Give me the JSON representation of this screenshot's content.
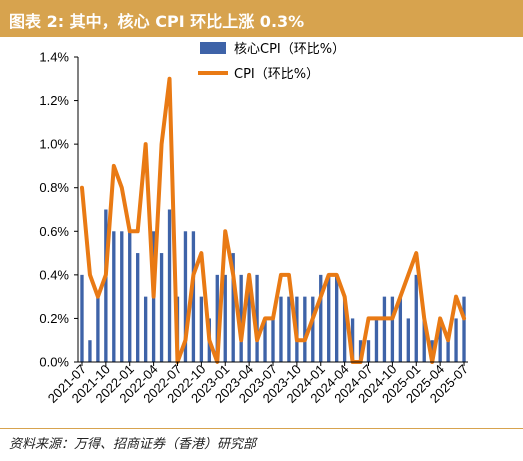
{
  "title": "图表 2:  其中，核心 CPI 环比上涨 0.3%",
  "source": "资料来源：万得、招商证券（香港）研究部",
  "colors": {
    "bar": "#3e63a8",
    "line": "#e97a14",
    "accent": "#d7a34e"
  },
  "chart_data": {
    "type": "bar+line",
    "x_tick_labels": [
      "2021-07",
      "2021-10",
      "2022-01",
      "2022-04",
      "2022-07",
      "2022-10",
      "2023-01",
      "2023-04",
      "2023-07",
      "2023-10",
      "2024-01",
      "2024-04",
      "2024-07",
      "2024-10",
      "2025-01",
      "2025-04",
      "2025-07"
    ],
    "y_tick_labels": [
      "0.0%",
      "0.2%",
      "0.4%",
      "0.6%",
      "0.8%",
      "1.0%",
      "1.2%",
      "1.4%"
    ],
    "ylim": [
      0,
      1.4
    ],
    "grid": false,
    "legend_position": "top-center",
    "categories": [
      "2021-07",
      "2021-08",
      "2021-09",
      "2021-10",
      "2021-11",
      "2021-12",
      "2022-01",
      "2022-02",
      "2022-03",
      "2022-04",
      "2022-05",
      "2022-06",
      "2022-07",
      "2022-08",
      "2022-09",
      "2022-10",
      "2022-11",
      "2022-12",
      "2023-01",
      "2023-02",
      "2023-03",
      "2023-04",
      "2023-05",
      "2023-06",
      "2023-07",
      "2023-08",
      "2023-09",
      "2023-10",
      "2023-11",
      "2023-12",
      "2024-01",
      "2024-02",
      "2024-03",
      "2024-04",
      "2024-05",
      "2024-06",
      "2024-07",
      "2024-08",
      "2024-09",
      "2024-10",
      "2024-11",
      "2024-12",
      "2025-01",
      "2025-02",
      "2025-03",
      "2025-04",
      "2025-05",
      "2025-06",
      "2025-07"
    ],
    "series": [
      {
        "name": "核心CPI（环比%）",
        "type": "bar",
        "values": [
          0.4,
          0.1,
          0.3,
          0.7,
          0.6,
          0.6,
          0.6,
          0.5,
          0.3,
          0.6,
          0.5,
          0.7,
          0.3,
          0.6,
          0.6,
          0.3,
          0.2,
          0.4,
          0.4,
          0.5,
          0.4,
          0.4,
          0.4,
          0.2,
          0.2,
          0.3,
          0.3,
          0.3,
          0.3,
          0.3,
          0.4,
          0.4,
          0.4,
          0.3,
          0.2,
          0.1,
          0.1,
          0.2,
          0.3,
          0.3,
          0.3,
          0.2,
          0.4,
          0.2,
          0.1,
          0.2,
          0.1,
          0.2,
          0.3
        ]
      },
      {
        "name": "CPI（环比%）",
        "type": "line",
        "values": [
          0.8,
          0.4,
          0.3,
          0.4,
          0.9,
          0.8,
          0.6,
          0.6,
          1.0,
          0.3,
          1.0,
          1.3,
          0.0,
          0.1,
          0.4,
          0.5,
          0.1,
          0.0,
          0.6,
          0.4,
          0.1,
          0.4,
          0.1,
          0.2,
          0.2,
          0.4,
          0.4,
          0.1,
          0.1,
          0.2,
          0.3,
          0.4,
          0.4,
          0.3,
          0.0,
          0.0,
          0.2,
          0.2,
          0.2,
          0.2,
          0.3,
          0.4,
          0.5,
          0.2,
          0.0,
          0.2,
          0.1,
          0.3,
          0.2
        ]
      }
    ]
  }
}
